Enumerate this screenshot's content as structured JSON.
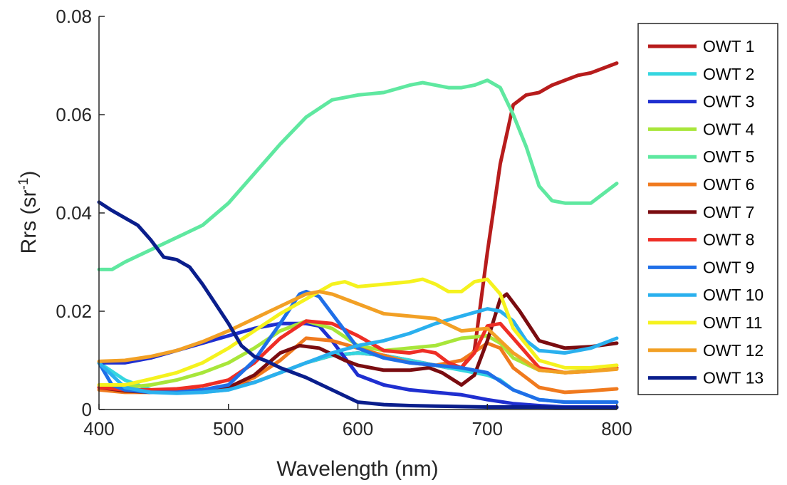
{
  "chart_data": {
    "type": "line",
    "title": "",
    "xlabel": "Wavelength (nm)",
    "ylabel_main": "Rrs (sr",
    "ylabel_sup": "-1",
    "ylabel_close": ")",
    "xlim": [
      400,
      800
    ],
    "ylim": [
      0,
      0.08
    ],
    "xticks": [
      400,
      500,
      600,
      700,
      800
    ],
    "xtick_labels": [
      "400",
      "500",
      "600",
      "700",
      "800"
    ],
    "yticks": [
      0,
      0.02,
      0.04,
      0.06,
      0.08
    ],
    "ytick_labels": [
      "0",
      "0.02",
      "0.04",
      "0.06",
      "0.08"
    ],
    "grid": false,
    "legend_position": "right",
    "series": [
      {
        "name": "OWT 1",
        "color": "#b71c1c",
        "x": [
          400,
          420,
          440,
          460,
          480,
          500,
          520,
          540,
          560,
          580,
          600,
          620,
          640,
          660,
          670,
          680,
          690,
          700,
          710,
          720,
          730,
          740,
          750,
          760,
          770,
          780,
          800
        ],
        "y": [
          0.005,
          0.0042,
          0.0038,
          0.0038,
          0.004,
          0.0045,
          0.0055,
          0.0075,
          0.0095,
          0.011,
          0.0115,
          0.011,
          0.01,
          0.009,
          0.0085,
          0.0085,
          0.012,
          0.032,
          0.05,
          0.062,
          0.064,
          0.0645,
          0.066,
          0.067,
          0.068,
          0.0685,
          0.0705
        ]
      },
      {
        "name": "OWT 2",
        "color": "#35d6e0",
        "x": [
          400,
          420,
          440,
          460,
          480,
          500,
          520,
          540,
          560,
          580,
          600,
          620,
          640,
          660,
          680,
          700,
          710,
          720,
          740,
          760,
          780,
          800
        ],
        "y": [
          0.0095,
          0.006,
          0.004,
          0.0035,
          0.0035,
          0.004,
          0.0055,
          0.0075,
          0.0095,
          0.011,
          0.0115,
          0.011,
          0.01,
          0.009,
          0.008,
          0.007,
          0.006,
          0.004,
          0.002,
          0.0015,
          0.0015,
          0.0015
        ]
      },
      {
        "name": "OWT 3",
        "color": "#1f2fd0",
        "x": [
          400,
          420,
          440,
          460,
          480,
          500,
          520,
          540,
          560,
          570,
          580,
          600,
          620,
          640,
          660,
          680,
          700,
          720,
          740,
          760,
          780,
          800
        ],
        "y": [
          0.0095,
          0.0095,
          0.0105,
          0.012,
          0.0135,
          0.015,
          0.0165,
          0.0175,
          0.0175,
          0.017,
          0.014,
          0.007,
          0.005,
          0.004,
          0.0035,
          0.003,
          0.002,
          0.0012,
          0.0008,
          0.0005,
          0.0005,
          0.0005
        ]
      },
      {
        "name": "OWT 4",
        "color": "#a8e63a",
        "x": [
          400,
          420,
          440,
          460,
          480,
          500,
          520,
          540,
          560,
          580,
          600,
          620,
          640,
          660,
          680,
          700,
          710,
          720,
          740,
          760,
          780,
          800
        ],
        "y": [
          0.0045,
          0.0045,
          0.005,
          0.006,
          0.0075,
          0.0095,
          0.0125,
          0.016,
          0.018,
          0.0165,
          0.013,
          0.012,
          0.0125,
          0.013,
          0.0145,
          0.015,
          0.0135,
          0.0105,
          0.008,
          0.0075,
          0.008,
          0.0085
        ]
      },
      {
        "name": "OWT 5",
        "color": "#5fe8a0",
        "x": [
          400,
          410,
          420,
          440,
          460,
          480,
          500,
          520,
          540,
          560,
          580,
          600,
          620,
          640,
          650,
          660,
          670,
          680,
          690,
          700,
          710,
          720,
          730,
          740,
          750,
          760,
          770,
          780,
          800
        ],
        "y": [
          0.0285,
          0.0285,
          0.03,
          0.0325,
          0.035,
          0.0375,
          0.042,
          0.048,
          0.054,
          0.0595,
          0.063,
          0.064,
          0.0645,
          0.066,
          0.0665,
          0.066,
          0.0655,
          0.0655,
          0.066,
          0.067,
          0.0655,
          0.06,
          0.0535,
          0.0455,
          0.0425,
          0.042,
          0.042,
          0.042,
          0.046
        ]
      },
      {
        "name": "OWT 6",
        "color": "#f07a1e",
        "x": [
          400,
          420,
          440,
          460,
          480,
          500,
          520,
          540,
          560,
          580,
          600,
          620,
          640,
          660,
          680,
          700,
          710,
          720,
          740,
          760,
          780,
          800
        ],
        "y": [
          0.004,
          0.0035,
          0.0035,
          0.0038,
          0.004,
          0.0045,
          0.0065,
          0.01,
          0.0145,
          0.014,
          0.0125,
          0.011,
          0.0095,
          0.009,
          0.01,
          0.0135,
          0.0125,
          0.0085,
          0.0045,
          0.0035,
          0.0038,
          0.0042
        ]
      },
      {
        "name": "OWT 7",
        "color": "#7a0c10",
        "x": [
          400,
          420,
          440,
          460,
          480,
          500,
          520,
          540,
          555,
          570,
          590,
          600,
          620,
          640,
          655,
          665,
          680,
          690,
          700,
          710,
          715,
          725,
          740,
          760,
          780,
          800
        ],
        "y": [
          0.0045,
          0.0038,
          0.0035,
          0.0035,
          0.004,
          0.0045,
          0.007,
          0.0115,
          0.013,
          0.0125,
          0.01,
          0.009,
          0.008,
          0.008,
          0.0085,
          0.0075,
          0.005,
          0.007,
          0.014,
          0.0225,
          0.0235,
          0.02,
          0.014,
          0.0125,
          0.0128,
          0.0135
        ]
      },
      {
        "name": "OWT 8",
        "color": "#ee2e26",
        "x": [
          400,
          420,
          440,
          460,
          480,
          500,
          520,
          540,
          560,
          580,
          600,
          620,
          640,
          650,
          660,
          670,
          680,
          690,
          700,
          710,
          720,
          740,
          760,
          780,
          800
        ],
        "y": [
          0.0045,
          0.004,
          0.004,
          0.0042,
          0.0048,
          0.006,
          0.0095,
          0.0145,
          0.018,
          0.0175,
          0.015,
          0.012,
          0.0115,
          0.012,
          0.0115,
          0.0095,
          0.0085,
          0.0115,
          0.017,
          0.0175,
          0.0145,
          0.0085,
          0.0075,
          0.0078,
          0.0085
        ]
      },
      {
        "name": "OWT 9",
        "color": "#1f6fe8",
        "x": [
          400,
          410,
          420,
          440,
          460,
          480,
          500,
          520,
          540,
          555,
          560,
          570,
          580,
          600,
          620,
          640,
          660,
          680,
          700,
          720,
          740,
          760,
          780,
          800
        ],
        "y": [
          0.0095,
          0.005,
          0.004,
          0.0035,
          0.0035,
          0.004,
          0.005,
          0.01,
          0.0175,
          0.0235,
          0.024,
          0.023,
          0.0195,
          0.0125,
          0.0105,
          0.0095,
          0.009,
          0.0085,
          0.0075,
          0.004,
          0.002,
          0.0015,
          0.0015,
          0.0015
        ]
      },
      {
        "name": "OWT 10",
        "color": "#2ab0ee",
        "x": [
          400,
          420,
          440,
          460,
          480,
          500,
          520,
          540,
          560,
          580,
          600,
          620,
          640,
          660,
          680,
          700,
          710,
          720,
          730,
          740,
          760,
          780,
          800
        ],
        "y": [
          0.0095,
          0.0045,
          0.0035,
          0.0033,
          0.0035,
          0.004,
          0.0055,
          0.0075,
          0.0095,
          0.0115,
          0.013,
          0.014,
          0.0155,
          0.0175,
          0.019,
          0.0205,
          0.02,
          0.018,
          0.014,
          0.012,
          0.0115,
          0.0125,
          0.0145
        ]
      },
      {
        "name": "OWT 11",
        "color": "#f5f21e",
        "x": [
          400,
          420,
          440,
          460,
          480,
          500,
          520,
          540,
          560,
          570,
          580,
          590,
          600,
          620,
          640,
          650,
          660,
          670,
          680,
          690,
          700,
          710,
          720,
          740,
          760,
          780,
          800
        ],
        "y": [
          0.005,
          0.005,
          0.0062,
          0.0075,
          0.0095,
          0.0125,
          0.016,
          0.0195,
          0.0225,
          0.024,
          0.0255,
          0.026,
          0.025,
          0.0255,
          0.026,
          0.0265,
          0.0255,
          0.024,
          0.024,
          0.026,
          0.0265,
          0.0235,
          0.0165,
          0.01,
          0.0085,
          0.0085,
          0.009
        ]
      },
      {
        "name": "OWT 12",
        "color": "#f2a025",
        "x": [
          400,
          420,
          440,
          460,
          480,
          500,
          520,
          540,
          560,
          570,
          580,
          600,
          620,
          640,
          660,
          680,
          700,
          720,
          740,
          760,
          780,
          800
        ],
        "y": [
          0.0098,
          0.01,
          0.0108,
          0.012,
          0.0138,
          0.016,
          0.0185,
          0.021,
          0.0235,
          0.024,
          0.0235,
          0.0215,
          0.0195,
          0.019,
          0.0185,
          0.016,
          0.0165,
          0.0115,
          0.008,
          0.0075,
          0.0078,
          0.0082
        ]
      },
      {
        "name": "OWT 13",
        "color": "#0a1e8c",
        "x": [
          400,
          410,
          420,
          430,
          440,
          450,
          460,
          470,
          480,
          490,
          500,
          510,
          520,
          530,
          540,
          560,
          580,
          600,
          620,
          640,
          660,
          680,
          700,
          720,
          740,
          760,
          780,
          800
        ],
        "y": [
          0.0422,
          0.0405,
          0.039,
          0.0375,
          0.0345,
          0.031,
          0.0305,
          0.029,
          0.0255,
          0.0215,
          0.0175,
          0.013,
          0.0108,
          0.0098,
          0.0085,
          0.0065,
          0.004,
          0.0015,
          0.001,
          0.0008,
          0.0007,
          0.0006,
          0.0005,
          0.0005,
          0.0005,
          0.0004,
          0.0004,
          0.0004
        ]
      }
    ]
  }
}
